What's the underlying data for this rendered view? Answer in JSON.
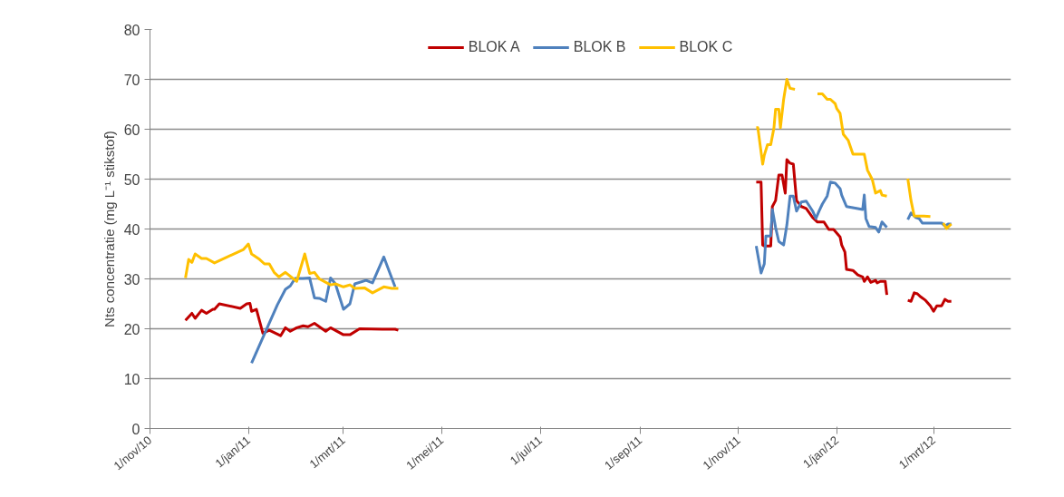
{
  "chart_data": {
    "type": "line",
    "ylabel": "Nts concentratie (mg L⁻¹ stikstof)",
    "xlim": [
      "2010-11-01",
      "2012-04-18"
    ],
    "xticks": [
      {
        "value": "2010-11-01",
        "label": "1/nov/10"
      },
      {
        "value": "2011-01-01",
        "label": "1/jan/11"
      },
      {
        "value": "2011-03-01",
        "label": "1/mrt/11"
      },
      {
        "value": "2011-05-01",
        "label": "1/mei/11"
      },
      {
        "value": "2011-07-01",
        "label": "1/jul/11"
      },
      {
        "value": "2011-09-01",
        "label": "1/sep/11"
      },
      {
        "value": "2011-11-01",
        "label": "1/nov/11"
      },
      {
        "value": "2012-01-01",
        "label": "1/jan/12"
      },
      {
        "value": "2012-03-01",
        "label": "1/mrt/12"
      }
    ],
    "ylim": [
      0,
      80
    ],
    "yticks": [
      0,
      10,
      20,
      30,
      40,
      50,
      60,
      70,
      80
    ],
    "grid": "y",
    "legend": "top",
    "marker": "none",
    "line_style": "solid",
    "series": [
      {
        "name": "BLOK A",
        "color": "#c00000",
        "x": [
          "2010-11-23",
          "2010-11-27",
          "2010-11-29",
          "2010-12-03",
          "2010-12-06",
          "2010-12-10",
          "2010-12-11",
          "2010-12-14",
          "2010-12-27",
          "2010-12-31",
          "2011-01-02",
          "2011-01-03",
          "2011-01-06",
          "2011-01-10",
          "2011-01-14",
          "2011-01-21",
          "2011-01-24",
          "2011-01-27",
          "2011-01-31",
          "2011-02-04",
          "2011-02-07",
          "2011-02-11",
          "2011-02-15",
          "2011-02-18",
          "2011-02-21",
          "2011-03-01",
          "2011-03-05",
          "2011-03-11",
          "2011-03-25",
          "2011-04-02",
          "2011-04-04",
          "2011-04-05",
          "2011-11-12",
          "2011-11-15",
          "2011-11-16",
          "2011-11-17",
          "2011-11-21",
          "2011-11-22",
          "2011-11-24",
          "2011-11-26",
          "2011-11-28",
          "2011-11-30",
          "2011-12-01",
          "2011-12-03",
          "2011-12-05",
          "2011-12-07",
          "2011-12-10",
          "2011-12-13",
          "2011-12-17",
          "2011-12-20",
          "2011-12-24",
          "2011-12-27",
          "2011-12-30",
          "2012-01-03",
          "2012-01-04",
          "2012-01-06",
          "2012-01-07",
          "2012-01-11",
          "2012-01-14",
          "2012-01-17",
          "2012-01-18",
          "2012-01-20",
          "2012-01-22",
          "2012-01-25",
          "2012-01-26",
          "2012-01-28",
          "2012-01-31",
          "2012-02-01",
          "2012-02-02",
          "2012-02-14",
          "2012-02-16",
          "2012-02-18",
          "2012-02-20",
          "2012-02-22",
          "2012-02-25",
          "2012-02-28",
          "2012-03-01",
          "2012-03-03",
          "2012-03-06",
          "2012-03-08",
          "2012-03-10",
          "2012-03-12"
        ],
        "values": [
          21.7,
          23.1,
          22.1,
          23.7,
          23.1,
          23.9,
          23.9,
          25.0,
          24.1,
          25.0,
          25.1,
          23.5,
          23.9,
          19.1,
          19.7,
          18.6,
          20.2,
          19.5,
          20.2,
          20.6,
          20.4,
          21.1,
          20.2,
          19.5,
          20.2,
          18.8,
          18.8,
          20.0,
          19.9,
          19.9,
          19.7,
          null,
          49.4,
          49.4,
          36.8,
          36.6,
          36.6,
          44.5,
          45.7,
          50.8,
          50.8,
          47.2,
          53.9,
          53.2,
          53.0,
          45.7,
          44.5,
          44.1,
          42.3,
          41.4,
          41.4,
          39.9,
          39.9,
          38.4,
          36.8,
          35.4,
          31.9,
          31.7,
          30.8,
          30.4,
          29.5,
          30.4,
          29.3,
          29.7,
          29.2,
          29.5,
          29.5,
          26.8,
          null,
          25.7,
          25.5,
          27.2,
          27.0,
          26.4,
          25.7,
          24.6,
          23.5,
          24.6,
          24.6,
          25.9,
          25.5,
          25.5
        ]
      },
      {
        "name": "BLOK B",
        "color": "#4f81bd",
        "x": [
          "2011-01-03",
          "2011-01-19",
          "2011-01-24",
          "2011-01-27",
          "2011-01-30",
          "2011-02-04",
          "2011-02-08",
          "2011-02-11",
          "2011-02-14",
          "2011-02-18",
          "2011-02-21",
          "2011-02-24",
          "2011-03-01",
          "2011-03-05",
          "2011-03-08",
          "2011-03-15",
          "2011-03-19",
          "2011-03-26",
          "2011-04-02",
          "2011-04-03",
          "2011-11-12",
          "2011-11-15",
          "2011-11-17",
          "2011-11-18",
          "2011-11-21",
          "2011-11-22",
          "2011-11-24",
          "2011-11-26",
          "2011-11-29",
          "2011-12-01",
          "2011-12-03",
          "2011-12-05",
          "2011-12-07",
          "2011-12-10",
          "2011-12-13",
          "2011-12-17",
          "2011-12-19",
          "2011-12-21",
          "2011-12-23",
          "2011-12-26",
          "2011-12-28",
          "2011-12-31",
          "2012-01-03",
          "2012-01-04",
          "2012-01-07",
          "2012-01-14",
          "2012-01-17",
          "2012-01-18",
          "2012-01-19",
          "2012-01-21",
          "2012-01-25",
          "2012-01-27",
          "2012-01-29",
          "2012-02-01",
          "2012-02-02",
          "2012-02-14",
          "2012-02-16",
          "2012-02-19",
          "2012-02-21",
          "2012-02-23",
          "2012-03-06",
          "2012-03-08",
          "2012-03-10",
          "2012-03-12"
        ],
        "values": [
          13.1,
          24.8,
          27.9,
          28.6,
          30.1,
          30.1,
          30.2,
          26.2,
          26.1,
          25.5,
          30.2,
          29.0,
          23.9,
          25.0,
          29.0,
          29.7,
          29.2,
          34.4,
          28.4,
          null,
          36.6,
          31.2,
          33.0,
          38.6,
          38.6,
          43.9,
          40.3,
          37.5,
          36.8,
          40.8,
          46.6,
          46.6,
          43.6,
          45.4,
          45.6,
          43.6,
          42.1,
          43.6,
          45.0,
          46.6,
          49.4,
          49.2,
          48.1,
          46.8,
          44.5,
          44.1,
          43.9,
          46.8,
          42.1,
          40.5,
          40.3,
          39.4,
          41.4,
          40.3,
          null,
          41.9,
          43.2,
          42.3,
          42.1,
          41.2,
          41.2,
          40.6,
          41.0,
          41.0
        ]
      },
      {
        "name": "BLOK C",
        "color": "#ffc000",
        "x": [
          "2010-11-23",
          "2010-11-25",
          "2010-11-27",
          "2010-11-29",
          "2010-12-03",
          "2010-12-06",
          "2010-12-11",
          "2010-12-29",
          "2011-01-01",
          "2011-01-03",
          "2011-01-08",
          "2011-01-11",
          "2011-01-14",
          "2011-01-17",
          "2011-01-20",
          "2011-01-24",
          "2011-01-31",
          "2011-02-05",
          "2011-02-08",
          "2011-02-11",
          "2011-02-14",
          "2011-02-21",
          "2011-02-24",
          "2011-03-01",
          "2011-03-05",
          "2011-03-08",
          "2011-03-14",
          "2011-03-19",
          "2011-03-26",
          "2011-03-31",
          "2011-04-04",
          "2011-04-05",
          "2011-11-12",
          "2011-11-13",
          "2011-11-16",
          "2011-11-17",
          "2011-11-19",
          "2011-11-21",
          "2011-11-23",
          "2011-11-24",
          "2011-11-26",
          "2011-11-27",
          "2011-11-29",
          "2011-12-01",
          "2011-12-03",
          "2011-12-06",
          "2011-12-07",
          "2011-12-20",
          "2011-12-23",
          "2011-12-26",
          "2011-12-28",
          "2011-12-31",
          "2012-01-01",
          "2012-01-03",
          "2012-01-05",
          "2012-01-08",
          "2012-01-11",
          "2012-01-18",
          "2012-01-20",
          "2012-01-23",
          "2012-01-25",
          "2012-01-28",
          "2012-01-29",
          "2012-02-01",
          "2012-02-02",
          "2012-02-14",
          "2012-02-16",
          "2012-02-18",
          "2012-02-24",
          "2012-02-28",
          "2012-03-01",
          "2012-03-07",
          "2012-03-09",
          "2012-03-12"
        ],
        "values": [
          30.2,
          33.9,
          33.3,
          35.0,
          34.1,
          34.1,
          33.2,
          35.9,
          37.0,
          35.0,
          33.9,
          33.0,
          33.0,
          31.3,
          30.4,
          31.3,
          29.5,
          35.0,
          31.1,
          31.3,
          30.0,
          28.8,
          29.0,
          28.4,
          28.8,
          28.1,
          28.2,
          27.2,
          28.4,
          28.1,
          28.1,
          null,
          60.3,
          60.3,
          53.0,
          54.8,
          56.9,
          56.9,
          60.3,
          64.0,
          64.0,
          60.3,
          66.0,
          70.0,
          68.2,
          68.0,
          null,
          67.1,
          67.1,
          66.0,
          66.0,
          65.1,
          64.1,
          63.2,
          59.0,
          57.8,
          55.0,
          55.0,
          51.8,
          49.9,
          47.2,
          47.7,
          46.8,
          46.6,
          null,
          50.1,
          45.7,
          42.6,
          42.6,
          42.5,
          null,
          41.2,
          40.1,
          41.0
        ]
      }
    ]
  }
}
